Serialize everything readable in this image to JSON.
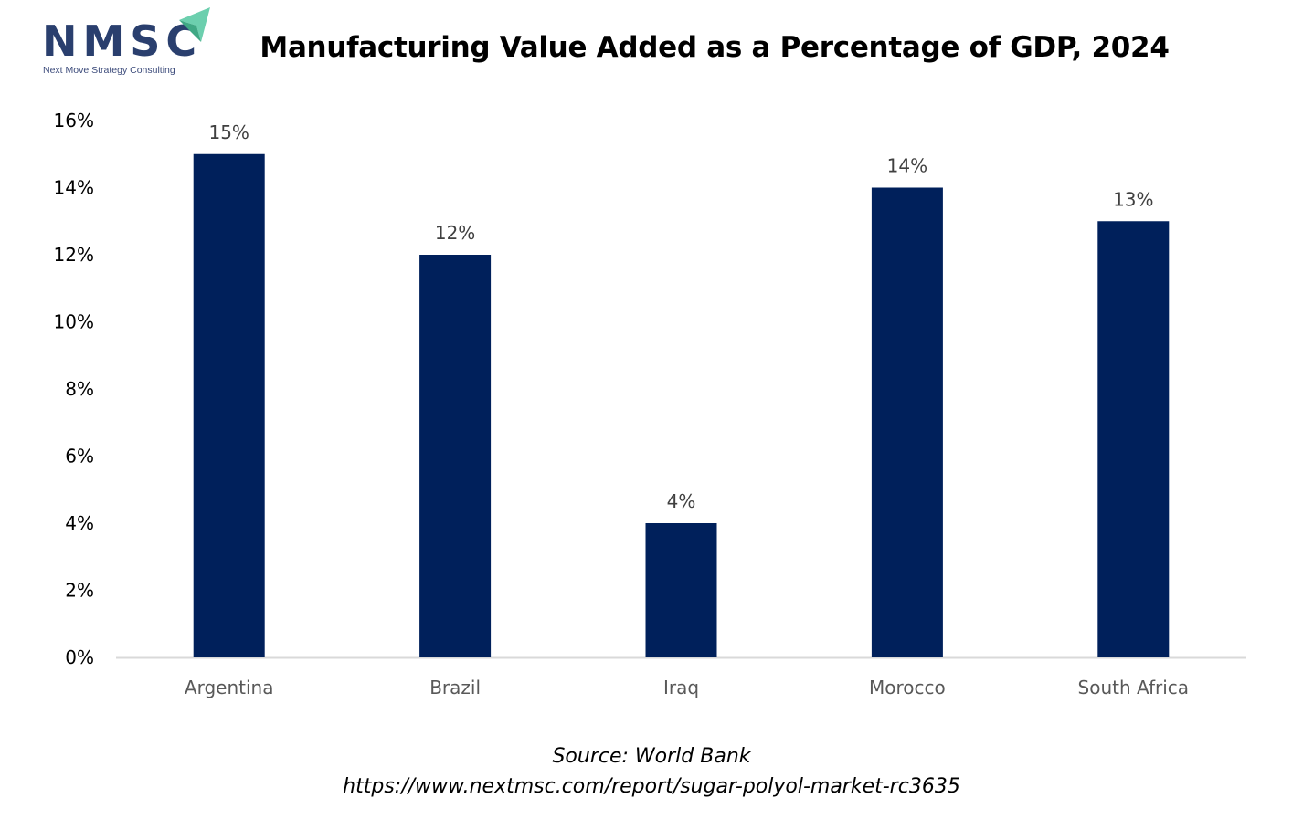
{
  "logo": {
    "name": "NMSC",
    "tagline": "Next Move Strategy Consulting"
  },
  "colors": {
    "bar": "#00205b",
    "axis": "#d9d9d9",
    "logo_text": "#2a3f6e",
    "logo_arrow": "#6ccfae"
  },
  "chart_data": {
    "type": "bar",
    "title": "Manufacturing Value Added as a Percentage of GDP, 2024",
    "xlabel": "",
    "ylabel": "",
    "categories": [
      "Argentina",
      "Brazil",
      "Iraq",
      "Morocco",
      "South Africa"
    ],
    "values": [
      15,
      12,
      4,
      14,
      13
    ],
    "data_labels": [
      "15%",
      "12%",
      "4%",
      "14%",
      "13%"
    ],
    "unit": "%",
    "ylim": [
      0,
      16
    ],
    "yticks": [
      0,
      2,
      4,
      6,
      8,
      10,
      12,
      14,
      16
    ],
    "ytick_labels": [
      "0%",
      "2%",
      "4%",
      "6%",
      "8%",
      "10%",
      "12%",
      "14%",
      "16%"
    ],
    "grid": false,
    "legend": "none"
  },
  "footer": {
    "source": "Source: World Bank",
    "url": "https://www.nextmsc.com/report/sugar-polyol-market-rc3635"
  }
}
